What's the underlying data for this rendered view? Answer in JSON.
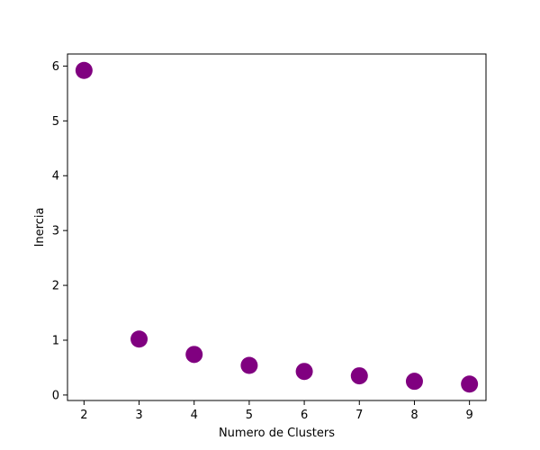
{
  "chart_data": {
    "type": "scatter",
    "title": "",
    "xlabel": "Numero de Clusters",
    "ylabel": "Inercia",
    "x": [
      2,
      3,
      4,
      5,
      6,
      7,
      8,
      9
    ],
    "y": [
      5.92,
      1.02,
      0.74,
      0.54,
      0.43,
      0.35,
      0.25,
      0.2
    ],
    "xlim": [
      1.7,
      9.3
    ],
    "ylim": [
      -0.1,
      6.22
    ],
    "xticks": [
      2,
      3,
      4,
      5,
      6,
      7,
      8,
      9
    ],
    "yticks": [
      0,
      1,
      2,
      3,
      4,
      5,
      6
    ],
    "xtick_labels": [
      "2",
      "3",
      "4",
      "5",
      "6",
      "7",
      "8",
      "9"
    ],
    "ytick_labels": [
      "0",
      "1",
      "2",
      "3",
      "4",
      "5",
      "6"
    ],
    "marker_color": "#800080",
    "grid": false,
    "legend": "none"
  }
}
